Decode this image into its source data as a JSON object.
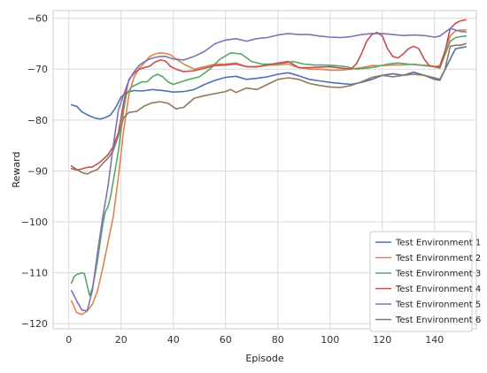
{
  "chart_data": {
    "type": "line",
    "title": "",
    "xlabel": "Episode",
    "ylabel": "Reward",
    "xlim": [
      -6,
      156
    ],
    "ylim": [
      -121,
      -58.5
    ],
    "xticks": [
      0,
      20,
      40,
      60,
      80,
      100,
      120,
      140
    ],
    "yticks": [
      -60,
      -70,
      -80,
      -90,
      -100,
      -110,
      -120
    ],
    "grid": true,
    "legend_position": "bottom-right",
    "series": [
      {
        "name": "Test Environment 1",
        "color": "#4c72b0",
        "x": [
          1,
          3,
          5,
          8,
          10,
          12,
          14,
          16,
          18,
          20,
          22,
          25,
          28,
          32,
          36,
          40,
          44,
          48,
          52,
          56,
          60,
          64,
          68,
          72,
          76,
          80,
          84,
          88,
          92,
          96,
          100,
          104,
          108,
          112,
          116,
          120,
          124,
          128,
          132,
          136,
          140,
          142,
          146,
          148,
          150,
          152
        ],
        "values": [
          -77,
          -77.3,
          -78.4,
          -79.2,
          -79.6,
          -79.8,
          -79.5,
          -79,
          -77.5,
          -75.5,
          -74.6,
          -74.2,
          -74.3,
          -74,
          -74.2,
          -74.5,
          -74.4,
          -74,
          -73,
          -72.2,
          -71.6,
          -71.4,
          -72,
          -71.8,
          -71.5,
          -71,
          -70.7,
          -71.3,
          -72,
          -72.3,
          -72.6,
          -72.8,
          -73,
          -72.6,
          -72,
          -71.2,
          -70.9,
          -71.2,
          -70.6,
          -71.2,
          -72,
          -72.2,
          -68,
          -66,
          -65.8,
          -65.6
        ]
      },
      {
        "name": "Test Environment 2",
        "color": "#dd8452",
        "x": [
          1,
          3,
          5,
          7,
          9,
          11,
          13,
          15,
          17,
          19,
          21,
          23,
          25,
          27,
          29,
          31,
          33,
          35,
          37,
          39,
          41,
          44,
          48,
          52,
          56,
          60,
          64,
          68,
          72,
          76,
          80,
          84,
          88,
          92,
          96,
          100,
          104,
          108,
          112,
          116,
          120,
          124,
          128,
          132,
          136,
          140,
          142,
          146,
          148,
          150,
          152
        ],
        "values": [
          -115.5,
          -117.8,
          -118.2,
          -117.5,
          -116.2,
          -113.5,
          -109,
          -104,
          -99,
          -91,
          -82,
          -75,
          -71.5,
          -69.8,
          -68.7,
          -67.5,
          -67,
          -66.8,
          -66.9,
          -67.2,
          -68,
          -69,
          -70,
          -69.5,
          -69,
          -69,
          -68.8,
          -69.5,
          -69.6,
          -69.2,
          -69.2,
          -69,
          -69.7,
          -70,
          -70,
          -70.2,
          -70.2,
          -70,
          -69.7,
          -69.3,
          -69.3,
          -69.2,
          -69.2,
          -69,
          -69.3,
          -69.5,
          -69.3,
          -63.5,
          -62.5,
          -62.3,
          -62.3
        ]
      },
      {
        "name": "Test Environment 3",
        "color": "#55a868",
        "x": [
          1,
          2,
          3,
          4,
          5,
          6,
          7,
          8,
          9,
          10,
          11,
          12,
          13,
          14,
          15,
          16,
          17,
          18,
          19,
          20,
          21,
          22,
          24,
          26,
          28,
          30,
          32,
          34,
          36,
          38,
          40,
          43,
          46,
          50,
          54,
          58,
          62,
          66,
          70,
          74,
          78,
          82,
          86,
          90,
          94,
          98,
          102,
          106,
          110,
          114,
          118,
          122,
          126,
          130,
          134,
          138,
          142,
          146,
          148,
          150,
          152
        ],
        "values": [
          -112,
          -110.8,
          -110.3,
          -110.2,
          -110,
          -110.2,
          -112.5,
          -114.5,
          -113,
          -110.5,
          -107.5,
          -104,
          -100.5,
          -98,
          -97,
          -95,
          -92,
          -89,
          -86,
          -82,
          -78,
          -75,
          -73.5,
          -73,
          -72.5,
          -72.5,
          -71.5,
          -71,
          -71.5,
          -72.5,
          -73,
          -72.5,
          -72,
          -71.5,
          -70,
          -68,
          -66.8,
          -67,
          -68.5,
          -69,
          -69,
          -68.8,
          -68.5,
          -69,
          -69.2,
          -69.2,
          -69.3,
          -69.5,
          -70,
          -69.8,
          -69.5,
          -69,
          -68.8,
          -69,
          -69.2,
          -69.3,
          -69.8,
          -64.5,
          -63.8,
          -63.6,
          -63.5
        ]
      },
      {
        "name": "Test Environment 4",
        "color": "#c44e52",
        "x": [
          1,
          3,
          5,
          7,
          9,
          11,
          13,
          15,
          17,
          19,
          21,
          23,
          25,
          27,
          29,
          31,
          33,
          35,
          37,
          39,
          41,
          44,
          48,
          52,
          56,
          60,
          64,
          68,
          72,
          76,
          80,
          84,
          88,
          92,
          96,
          100,
          104,
          108,
          110,
          112,
          114,
          116,
          118,
          120,
          122,
          124,
          126,
          128,
          130,
          132,
          134,
          136,
          138,
          140,
          142,
          144,
          146,
          148,
          150,
          152
        ],
        "values": [
          -89.5,
          -89.8,
          -89.6,
          -89.3,
          -89.2,
          -88.6,
          -87.8,
          -86.8,
          -85.2,
          -82.5,
          -76.5,
          -72,
          -70.8,
          -70,
          -69.7,
          -69.4,
          -68.6,
          -68.2,
          -68.4,
          -69.5,
          -70,
          -70.5,
          -70.3,
          -69.8,
          -69.3,
          -69.2,
          -69,
          -69.5,
          -69.5,
          -69.2,
          -68.8,
          -68.5,
          -69.7,
          -69.7,
          -69.6,
          -69.5,
          -69.8,
          -70,
          -69,
          -67,
          -64.5,
          -63.2,
          -62.8,
          -63.5,
          -66,
          -67.5,
          -67.8,
          -67,
          -66,
          -65.5,
          -66,
          -68,
          -69.3,
          -69.5,
          -69.6,
          -66.5,
          -62,
          -61,
          -60.5,
          -60.3
        ]
      },
      {
        "name": "Test Environment 5",
        "color": "#8172b3",
        "x": [
          1,
          3,
          5,
          7,
          9,
          11,
          13,
          15,
          17,
          19,
          21,
          23,
          25,
          27,
          29,
          31,
          33,
          35,
          37,
          40,
          44,
          48,
          52,
          56,
          60,
          64,
          68,
          72,
          76,
          80,
          84,
          88,
          92,
          96,
          100,
          104,
          108,
          112,
          116,
          120,
          124,
          128,
          132,
          136,
          140,
          142,
          146,
          148,
          150,
          152
        ],
        "values": [
          -113.5,
          -115.5,
          -117.3,
          -117.5,
          -113.5,
          -106,
          -99,
          -93,
          -85,
          -78,
          -75,
          -72.2,
          -70.5,
          -69.2,
          -68.5,
          -68,
          -67.7,
          -67.5,
          -67.5,
          -68,
          -68.2,
          -67.5,
          -66.5,
          -65,
          -64.3,
          -64,
          -64.5,
          -64,
          -63.8,
          -63.3,
          -63,
          -63.2,
          -63.2,
          -63.5,
          -63.7,
          -63.8,
          -63.6,
          -63.2,
          -63,
          -63,
          -63.2,
          -63.4,
          -63.3,
          -63.4,
          -63.7,
          -63.5,
          -62,
          -62.3,
          -62.6,
          -62.7
        ]
      },
      {
        "name": "Test Environment 6",
        "color": "#937860",
        "x": [
          1,
          3,
          5,
          7,
          9,
          11,
          13,
          15,
          17,
          19,
          21,
          23,
          26,
          29,
          32,
          35,
          38,
          41,
          44,
          48,
          52,
          56,
          60,
          62,
          64,
          68,
          72,
          76,
          80,
          84,
          88,
          92,
          96,
          100,
          104,
          108,
          112,
          116,
          120,
          124,
          128,
          132,
          136,
          140,
          142,
          144,
          146,
          148,
          150,
          152
        ],
        "values": [
          -89,
          -89.7,
          -90.3,
          -90.6,
          -90.1,
          -89.7,
          -88.5,
          -87.5,
          -86,
          -83,
          -79.5,
          -78.5,
          -78.3,
          -77.2,
          -76.6,
          -76.4,
          -76.7,
          -77.8,
          -77.5,
          -75.7,
          -75.2,
          -74.8,
          -74.4,
          -74,
          -74.6,
          -73.7,
          -74,
          -73,
          -72,
          -71.7,
          -72,
          -72.8,
          -73.2,
          -73.5,
          -73.6,
          -73.2,
          -72.5,
          -71.6,
          -71.2,
          -71.5,
          -71.2,
          -71,
          -71.2,
          -71.7,
          -72,
          -70,
          -65.5,
          -65.3,
          -65.3,
          -65
        ]
      }
    ]
  }
}
